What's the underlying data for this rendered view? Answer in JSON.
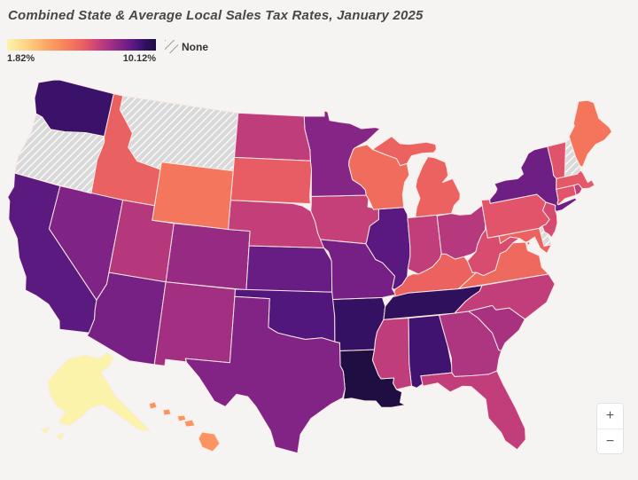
{
  "title": "Combined State & Average Local Sales Tax Rates, January 2025",
  "legend": {
    "min_label": "1.82%",
    "max_label": "10.12%",
    "none_label": "None"
  },
  "controls": {
    "zoom_in": "+",
    "zoom_out": "−"
  },
  "chart_data": {
    "type": "choropleth",
    "title": "Combined State & Average Local Sales Tax Rates, January 2025",
    "unit": "percent",
    "domain": [
      1.82,
      10.12
    ],
    "legend_position": "top-left",
    "no_data_color": "#d9d9d9",
    "border_color": "#fbe9e5",
    "background_color": "#f6f4f3",
    "colorscale": [
      [
        0.0,
        "#fcf3ab"
      ],
      [
        0.13,
        "#fdd385"
      ],
      [
        0.25,
        "#fbab67"
      ],
      [
        0.36,
        "#f98a5e"
      ],
      [
        0.44,
        "#f4755c"
      ],
      [
        0.5,
        "#ec6360"
      ],
      [
        0.56,
        "#dd4f6d"
      ],
      [
        0.62,
        "#c43f7a"
      ],
      [
        0.7,
        "#a12f82"
      ],
      [
        0.77,
        "#812386"
      ],
      [
        0.83,
        "#631c83"
      ],
      [
        0.88,
        "#49157a"
      ],
      [
        0.93,
        "#30105e"
      ],
      [
        1.0,
        "#1e0e42"
      ]
    ],
    "states": [
      {
        "abbr": "AL",
        "name": "Alabama",
        "rate": 9.29
      },
      {
        "abbr": "AK",
        "name": "Alaska",
        "rate": 1.82
      },
      {
        "abbr": "AZ",
        "name": "Arizona",
        "rate": 8.38
      },
      {
        "abbr": "AR",
        "name": "Arkansas",
        "rate": 9.45
      },
      {
        "abbr": "CA",
        "name": "California",
        "rate": 8.85
      },
      {
        "abbr": "CO",
        "name": "Colorado",
        "rate": 7.81
      },
      {
        "abbr": "CT",
        "name": "Connecticut",
        "rate": 6.35
      },
      {
        "abbr": "DE",
        "name": "Delaware",
        "rate": null
      },
      {
        "abbr": "DC",
        "name": "District of Columbia",
        "rate": 6.0
      },
      {
        "abbr": "FL",
        "name": "Florida",
        "rate": 7.0
      },
      {
        "abbr": "GA",
        "name": "Georgia",
        "rate": 7.38
      },
      {
        "abbr": "HI",
        "name": "Hawaii",
        "rate": 4.5
      },
      {
        "abbr": "ID",
        "name": "Idaho",
        "rate": 6.03
      },
      {
        "abbr": "IL",
        "name": "Illinois",
        "rate": 8.86
      },
      {
        "abbr": "IN",
        "name": "Indiana",
        "rate": 7.0
      },
      {
        "abbr": "IA",
        "name": "Iowa",
        "rate": 6.94
      },
      {
        "abbr": "KS",
        "name": "Kansas",
        "rate": 8.65
      },
      {
        "abbr": "KY",
        "name": "Kentucky",
        "rate": 6.0
      },
      {
        "abbr": "LA",
        "name": "Louisiana",
        "rate": 10.12
      },
      {
        "abbr": "ME",
        "name": "Maine",
        "rate": 5.5
      },
      {
        "abbr": "MD",
        "name": "Maryland",
        "rate": 6.0
      },
      {
        "abbr": "MA",
        "name": "Massachusetts",
        "rate": 6.25
      },
      {
        "abbr": "MI",
        "name": "Michigan",
        "rate": 6.0
      },
      {
        "abbr": "MN",
        "name": "Minnesota",
        "rate": 8.13
      },
      {
        "abbr": "MS",
        "name": "Mississippi",
        "rate": 7.06
      },
      {
        "abbr": "MO",
        "name": "Missouri",
        "rate": 8.39
      },
      {
        "abbr": "MT",
        "name": "Montana",
        "rate": null
      },
      {
        "abbr": "NE",
        "name": "Nebraska",
        "rate": 6.97
      },
      {
        "abbr": "NV",
        "name": "Nevada",
        "rate": 8.24
      },
      {
        "abbr": "NH",
        "name": "New Hampshire",
        "rate": null
      },
      {
        "abbr": "NJ",
        "name": "New Jersey",
        "rate": 6.63
      },
      {
        "abbr": "NM",
        "name": "New Mexico",
        "rate": 7.62
      },
      {
        "abbr": "NY",
        "name": "New York",
        "rate": 8.53
      },
      {
        "abbr": "NC",
        "name": "North Carolina",
        "rate": 7.0
      },
      {
        "abbr": "ND",
        "name": "North Dakota",
        "rate": 7.04
      },
      {
        "abbr": "OH",
        "name": "Ohio",
        "rate": 7.24
      },
      {
        "abbr": "OK",
        "name": "Oklahoma",
        "rate": 8.99
      },
      {
        "abbr": "OR",
        "name": "Oregon",
        "rate": null
      },
      {
        "abbr": "PA",
        "name": "Pennsylvania",
        "rate": 6.34
      },
      {
        "abbr": "RI",
        "name": "Rhode Island",
        "rate": 7.0
      },
      {
        "abbr": "SC",
        "name": "South Carolina",
        "rate": 7.5
      },
      {
        "abbr": "SD",
        "name": "South Dakota",
        "rate": 6.11
      },
      {
        "abbr": "TN",
        "name": "Tennessee",
        "rate": 9.56
      },
      {
        "abbr": "TX",
        "name": "Texas",
        "rate": 8.2
      },
      {
        "abbr": "UT",
        "name": "Utah",
        "rate": 7.25
      },
      {
        "abbr": "VT",
        "name": "Vermont",
        "rate": 6.36
      },
      {
        "abbr": "VA",
        "name": "Virginia",
        "rate": 5.77
      },
      {
        "abbr": "WA",
        "name": "Washington",
        "rate": 9.38
      },
      {
        "abbr": "WV",
        "name": "West Virginia",
        "rate": 6.57
      },
      {
        "abbr": "WI",
        "name": "Wisconsin",
        "rate": 5.7
      },
      {
        "abbr": "WY",
        "name": "Wyoming",
        "rate": 5.44
      }
    ]
  }
}
